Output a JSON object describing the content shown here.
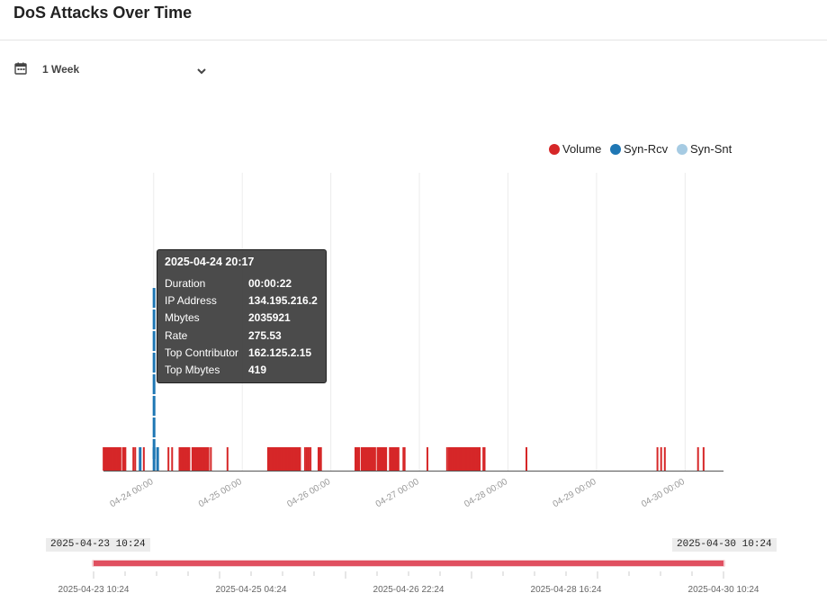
{
  "header": {
    "title": "DoS Attacks Over Time"
  },
  "range_select": {
    "icon": "calendar-icon",
    "value": "1 Week",
    "chevron": "chevron-down-icon"
  },
  "legend": [
    {
      "label": "Volume",
      "color": "#d62728"
    },
    {
      "label": "Syn-Rcv",
      "color": "#1f77b4"
    },
    {
      "label": "Syn-Snt",
      "color": "#a6cbe3"
    }
  ],
  "tooltip": {
    "title": "2025-04-24 20:17",
    "rows": [
      {
        "key": "Duration",
        "value": "00:00:22"
      },
      {
        "key": "IP Address",
        "value": "134.195.216.2"
      },
      {
        "key": "Mbytes",
        "value": "2035921"
      },
      {
        "key": "Rate",
        "value": "275.53"
      },
      {
        "key": "Top Contributor",
        "value": "162.125.2.15"
      },
      {
        "key": "Top Mbytes",
        "value": "419"
      }
    ]
  },
  "chart_data": {
    "type": "bar",
    "title": "DoS Attacks Over Time",
    "x_range": [
      "2025-04-23 10:24",
      "2025-04-30 10:24"
    ],
    "x_tick_labels": [
      "04-24 00:00",
      "04-25 00:00",
      "04-26 00:00",
      "04-27 00:00",
      "04-28 00:00",
      "04-29 00:00",
      "04-30 00:00"
    ],
    "grid": "vertical",
    "legend_placement": "top-right",
    "series": [
      {
        "name": "Volume",
        "color": "#d62728",
        "events": [
          "04-23 10:26",
          "04-23 10:40",
          "04-23 10:52",
          "04-23 11:05",
          "04-23 11:20",
          "04-23 11:35",
          "04-23 11:50",
          "04-23 12:05",
          "04-23 12:20",
          "04-23 12:35",
          "04-23 12:50",
          "04-23 13:05",
          "04-23 13:20",
          "04-23 13:35",
          "04-23 14:00",
          "04-23 14:20",
          "04-23 14:40",
          "04-23 15:00",
          "04-23 15:40",
          "04-23 16:00",
          "04-23 16:20",
          "04-23 18:30",
          "04-23 19:00",
          "04-23 21:20",
          "04-24 04:00",
          "04-24 05:00",
          "04-24 07:00",
          "04-24 07:20",
          "04-24 07:40",
          "04-24 08:00",
          "04-24 08:20",
          "04-24 08:40",
          "04-24 09:00",
          "04-24 09:20",
          "04-24 09:40",
          "04-24 10:30",
          "04-24 10:50",
          "04-24 11:10",
          "04-24 11:30",
          "04-24 11:50",
          "04-24 12:10",
          "04-24 12:30",
          "04-24 12:50",
          "04-24 13:10",
          "04-24 13:30",
          "04-24 13:50",
          "04-24 14:10",
          "04-24 14:30",
          "04-24 14:50",
          "04-24 15:30",
          "04-24 20:00",
          "04-25 07:00",
          "04-25 07:20",
          "04-25 07:40",
          "04-25 08:00",
          "04-25 08:20",
          "04-25 08:40",
          "04-25 09:00",
          "04-25 09:20",
          "04-25 09:40",
          "04-25 10:00",
          "04-25 10:20",
          "04-25 10:40",
          "04-25 11:00",
          "04-25 11:20",
          "04-25 11:40",
          "04-25 12:00",
          "04-25 12:20",
          "04-25 12:40",
          "04-25 13:00",
          "04-25 13:20",
          "04-25 13:40",
          "04-25 14:00",
          "04-25 14:20",
          "04-25 14:40",
          "04-25 15:00",
          "04-25 15:20",
          "04-25 15:40",
          "04-25 17:00",
          "04-25 17:30",
          "04-25 18:00",
          "04-25 18:30",
          "04-25 20:40",
          "04-25 21:00",
          "04-25 21:20",
          "04-26 06:40",
          "04-26 07:00",
          "04-26 07:20",
          "04-26 07:40",
          "04-26 08:20",
          "04-26 08:40",
          "04-26 09:00",
          "04-26 09:20",
          "04-26 09:40",
          "04-26 10:00",
          "04-26 10:20",
          "04-26 10:40",
          "04-26 11:00",
          "04-26 11:20",
          "04-26 11:40",
          "04-26 12:00",
          "04-26 12:40",
          "04-26 13:00",
          "04-26 13:20",
          "04-26 13:40",
          "04-26 14:00",
          "04-26 14:20",
          "04-26 14:40",
          "04-26 15:00",
          "04-26 16:00",
          "04-26 16:20",
          "04-26 16:40",
          "04-26 17:00",
          "04-26 17:20",
          "04-26 17:40",
          "04-26 18:00",
          "04-26 18:20",
          "04-26 19:40",
          "04-26 20:00",
          "04-27 02:10",
          "04-27 07:30",
          "04-27 08:00",
          "04-27 08:20",
          "04-27 08:40",
          "04-27 09:00",
          "04-27 09:20",
          "04-27 09:40",
          "04-27 10:00",
          "04-27 10:20",
          "04-27 10:40",
          "04-27 11:00",
          "04-27 11:20",
          "04-27 11:40",
          "04-27 12:00",
          "04-27 12:20",
          "04-27 12:40",
          "04-27 13:00",
          "04-27 13:20",
          "04-27 13:40",
          "04-27 14:00",
          "04-27 14:20",
          "04-27 14:40",
          "04-27 15:00",
          "04-27 15:20",
          "04-27 15:40",
          "04-27 16:00",
          "04-27 16:20",
          "04-27 17:20",
          "04-27 17:40",
          "04-28 05:00",
          "04-29 16:30",
          "04-29 17:30",
          "04-29 18:30",
          "04-30 03:30",
          "04-30 05:00"
        ]
      },
      {
        "name": "Syn-Rcv",
        "color": "#1f77b4",
        "events": [
          "04-23 20:20",
          "04-24 00:06",
          "04-24 01:04"
        ]
      },
      {
        "name": "Syn-Snt",
        "color": "#a6cbe3",
        "events": []
      }
    ],
    "highlighted_event": {
      "time": "2025-04-24 20:17",
      "duration": "00:00:22",
      "ip_address": "134.195.216.2",
      "mbytes": 2035921,
      "rate": 275.53,
      "top_contributor": "162.125.2.15",
      "top_mbytes": 419
    }
  },
  "navigator": {
    "start_label": "2025-04-23 10:24",
    "end_label": "2025-04-30 10:24",
    "tick_labels": [
      "2025-04-23 10:24",
      "2025-04-25 04:24",
      "2025-04-26 22:24",
      "2025-04-28 16:24",
      "2025-04-30 10:24"
    ],
    "track_color": "#e05060"
  }
}
